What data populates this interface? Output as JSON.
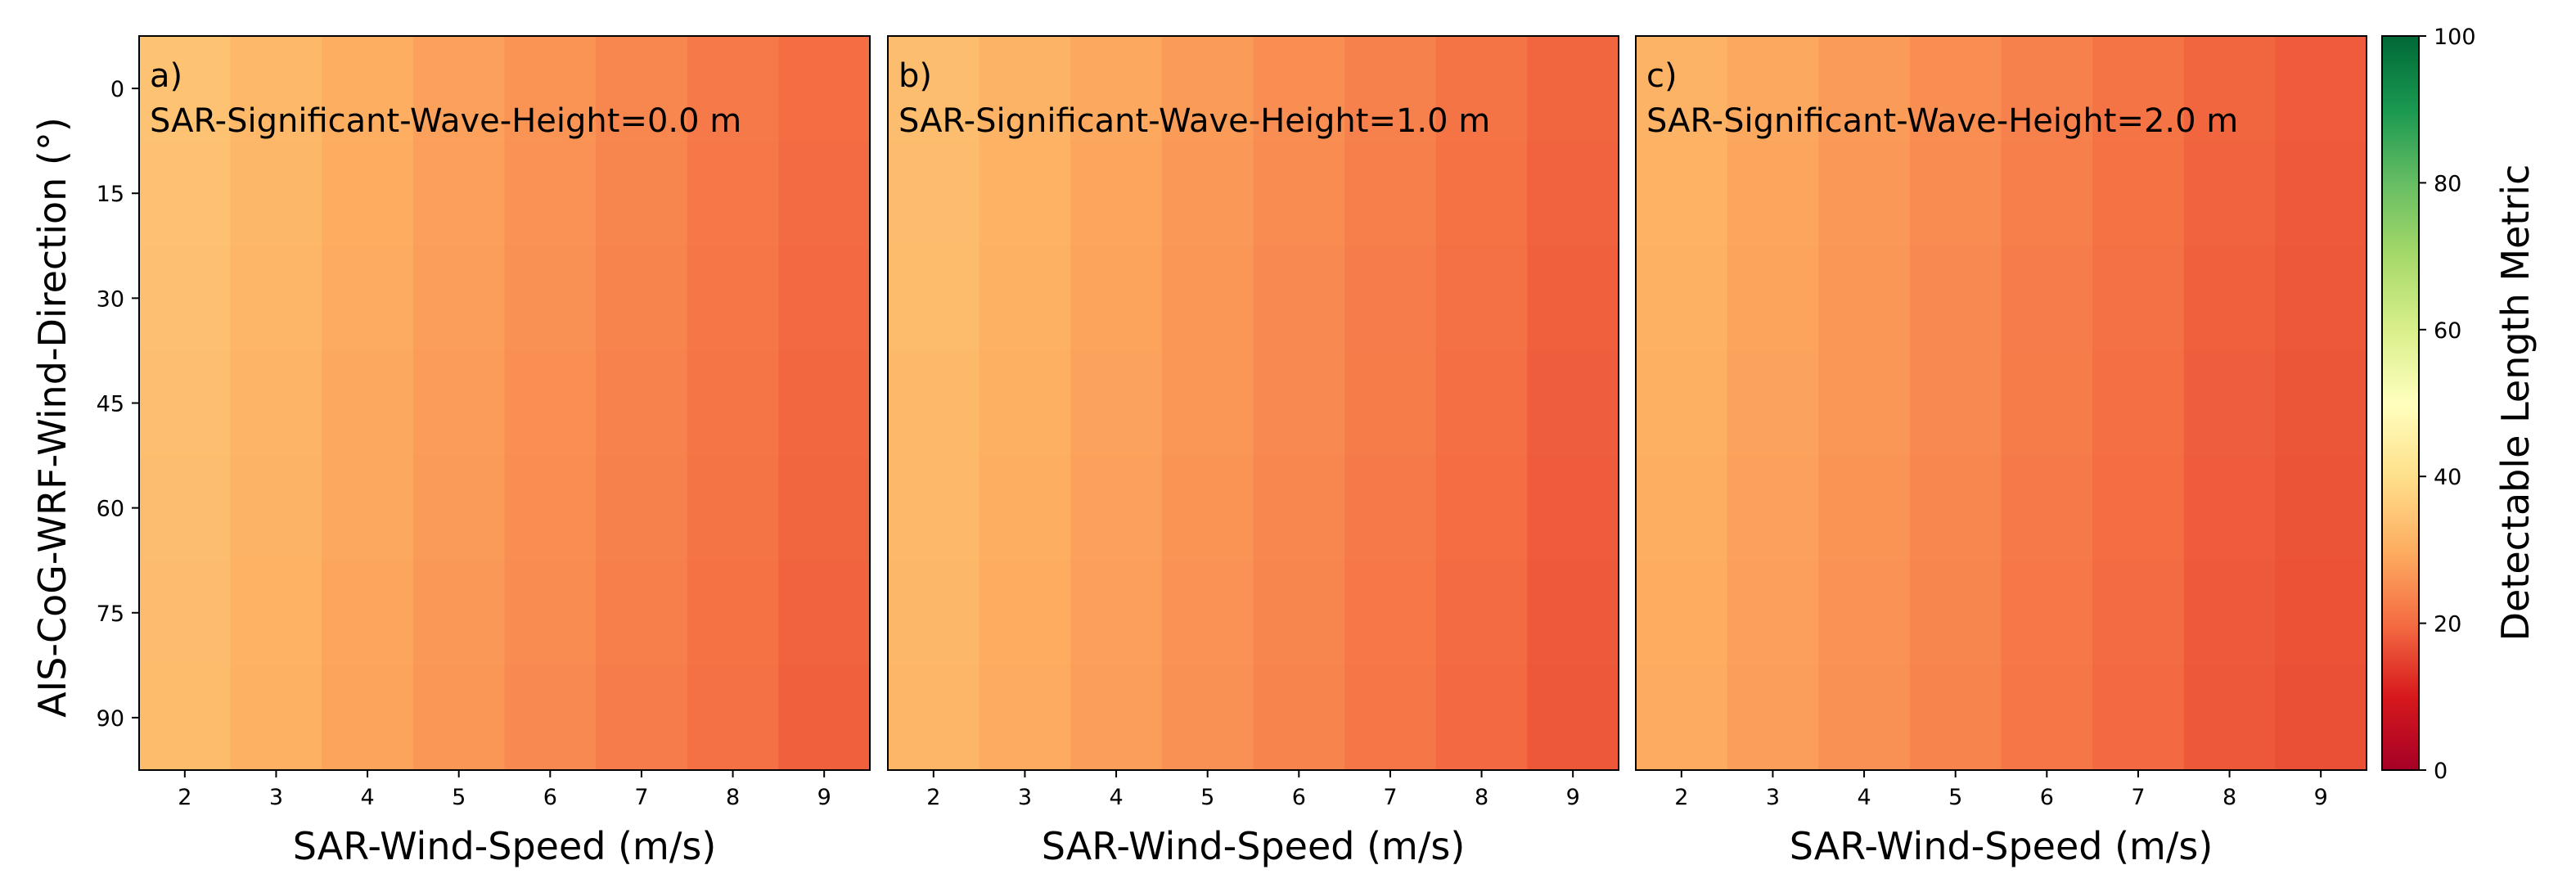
{
  "chart_data": {
    "type": "heatmap",
    "x_label": "SAR-Wind-Speed (m/s)",
    "y_label": "AIS-CoG-WRF-Wind-Direction (°)",
    "x_values": [
      2,
      3,
      4,
      5,
      6,
      7,
      8,
      9
    ],
    "y_values": [
      0,
      15,
      30,
      45,
      60,
      75,
      90
    ],
    "x_ticks": [
      "2",
      "3",
      "4",
      "5",
      "6",
      "7",
      "8",
      "9"
    ],
    "y_ticks": [
      "0",
      "15",
      "30",
      "45",
      "60",
      "75",
      "90"
    ],
    "colorbar": {
      "label": "Detectable Length Metric",
      "min": 0,
      "max": 100,
      "ticks": [
        "0",
        "20",
        "40",
        "60",
        "80",
        "100"
      ],
      "colormap": [
        "#a50026",
        "#d7191c",
        "#f46d43",
        "#fdae61",
        "#fee08b",
        "#ffffbf",
        "#d9ef8b",
        "#a6d96a",
        "#66bd63",
        "#1a9850",
        "#006837"
      ]
    },
    "panels": [
      {
        "letter": "a)",
        "subtitle": "SAR-Significant-Wave-Height=0.0 m",
        "row_values": [
          34,
          32,
          30,
          28,
          26,
          24,
          22,
          20
        ]
      },
      {
        "letter": "b)",
        "subtitle": "SAR-Significant-Wave-Height=1.0 m",
        "row_values": [
          33,
          31,
          29,
          27,
          25,
          23,
          21,
          19
        ]
      },
      {
        "letter": "c)",
        "subtitle": "SAR-Significant-Wave-Height=2.0 m",
        "row_values": [
          31,
          29,
          27,
          25,
          23,
          21,
          19,
          18
        ]
      }
    ]
  }
}
